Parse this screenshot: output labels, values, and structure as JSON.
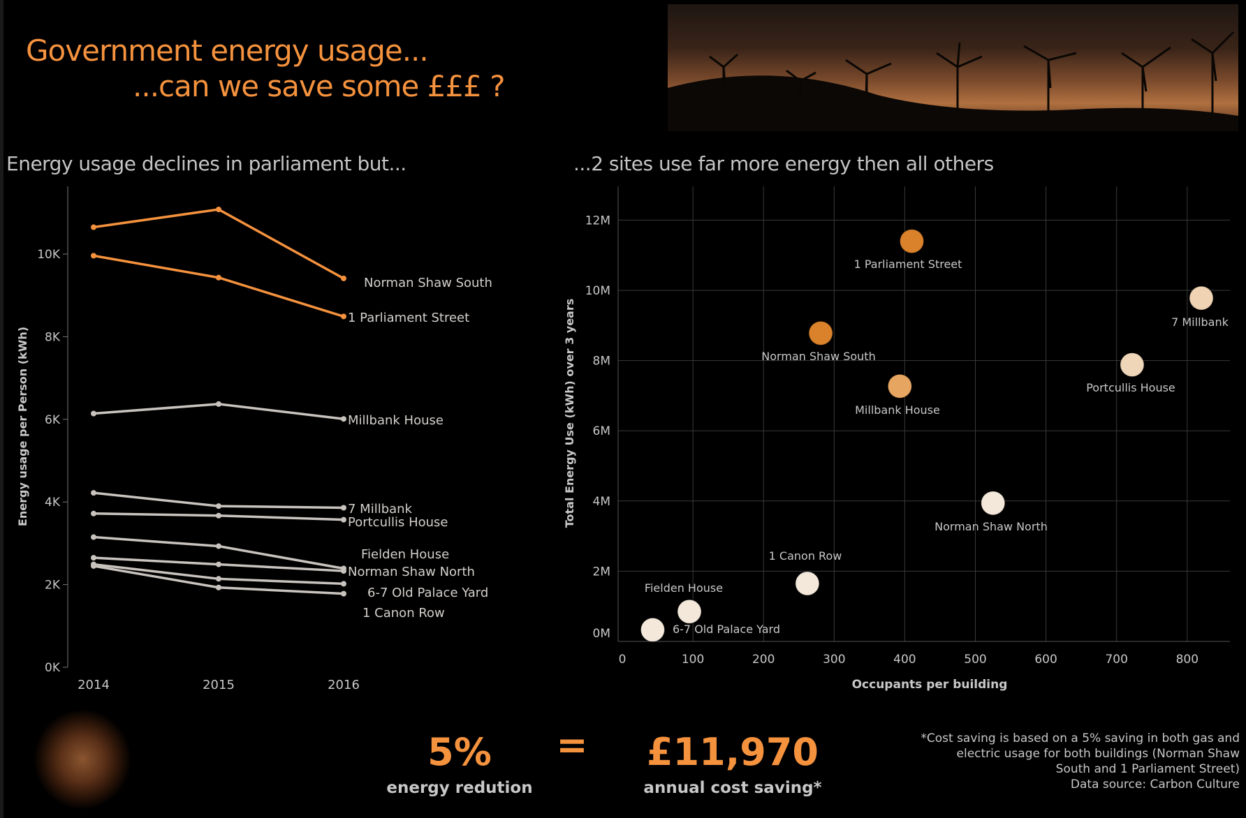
{
  "header": {
    "title_line1": "Government energy usage...",
    "title_line2": "...can we save some £££ ?"
  },
  "images": {
    "banner": "wind-turbines-sunset-photo",
    "bulb": "light-bulb-photo"
  },
  "colors": {
    "accent": "#f5923e",
    "grey_line": "#c9c3be",
    "background": "#000000"
  },
  "chart_data": [
    {
      "type": "line",
      "title": "Energy usage declines in parliament but...",
      "xlabel": "",
      "ylabel": "Energy usage per Person (kWh)",
      "categories": [
        "2014",
        "2015",
        "2016"
      ],
      "ylim": [
        0,
        11500
      ],
      "yticks": [
        "0K",
        "2K",
        "4K",
        "6K",
        "8K",
        "10K"
      ],
      "grid": false,
      "series": [
        {
          "name": "Norman Shaw South",
          "values": [
            10650,
            11080,
            9410
          ],
          "color": "#f5923e"
        },
        {
          "name": "1 Parliament Street",
          "values": [
            9960,
            9430,
            8490
          ],
          "color": "#f5923e"
        },
        {
          "name": "Millbank House",
          "values": [
            6140,
            6370,
            6010
          ],
          "color": "#c9c3be"
        },
        {
          "name": "7 Millbank",
          "values": [
            4220,
            3900,
            3860
          ],
          "color": "#c9c3be"
        },
        {
          "name": "Portcullis House",
          "values": [
            3720,
            3670,
            3570
          ],
          "color": "#c9c3be"
        },
        {
          "name": "Fielden House",
          "values": [
            3150,
            2930,
            2390
          ],
          "color": "#c9c3be"
        },
        {
          "name": "Norman Shaw North",
          "values": [
            2650,
            2490,
            2330
          ],
          "color": "#c9c3be"
        },
        {
          "name": "6-7 Old Palace Yard",
          "values": [
            2490,
            2140,
            2020
          ],
          "color": "#c9c3be"
        },
        {
          "name": "1 Canon Row",
          "values": [
            2450,
            1930,
            1780
          ],
          "color": "#c9c3be"
        }
      ]
    },
    {
      "type": "scatter",
      "title": "...2 sites use far more energy then all others",
      "xlabel": "Occupants per building",
      "ylabel": "Total Energy Use (kWh) over 3 years",
      "xlim": [
        0,
        870
      ],
      "ylim": [
        0,
        13000000
      ],
      "xticks": [
        "0",
        "100",
        "200",
        "300",
        "400",
        "500",
        "600",
        "700",
        "800"
      ],
      "yticks": [
        "0M",
        "2M",
        "4M",
        "6M",
        "8M",
        "10M",
        "12M"
      ],
      "grid": true,
      "points": [
        {
          "name": "1 Parliament Street",
          "x": 410,
          "y": 11400000,
          "color": "#d9822b"
        },
        {
          "name": "Norman Shaw South",
          "x": 281,
          "y": 8780000,
          "color": "#d9822b"
        },
        {
          "name": "Millbank House",
          "x": 393,
          "y": 7270000,
          "color": "#e6a560"
        },
        {
          "name": "7 Millbank",
          "x": 820,
          "y": 9780000,
          "color": "#efd3b2"
        },
        {
          "name": "Portcullis House",
          "x": 722,
          "y": 7880000,
          "color": "#efd6b8"
        },
        {
          "name": "Norman Shaw North",
          "x": 525,
          "y": 3940000,
          "color": "#f3e8da"
        },
        {
          "name": "1 Canon Row",
          "x": 262,
          "y": 1650000,
          "color": "#f3e8da"
        },
        {
          "name": "Fielden House",
          "x": 95,
          "y": 850000,
          "color": "#f3e8da"
        },
        {
          "name": "6-7 Old Palace Yard",
          "x": 43,
          "y": 330000,
          "color": "#f3e8da"
        }
      ]
    }
  ],
  "summary": {
    "reduction_value": "5%",
    "reduction_label": "energy redution",
    "equals": "=",
    "saving_value": "£11,970",
    "saving_label": "annual cost saving*",
    "note_lines": [
      "*Cost saving is based on a 5% saving in both gas and",
      "electric usage for both buildings (Norman Shaw",
      "South and 1 Parliament Street)",
      "Data source: Carbon Culture"
    ]
  }
}
